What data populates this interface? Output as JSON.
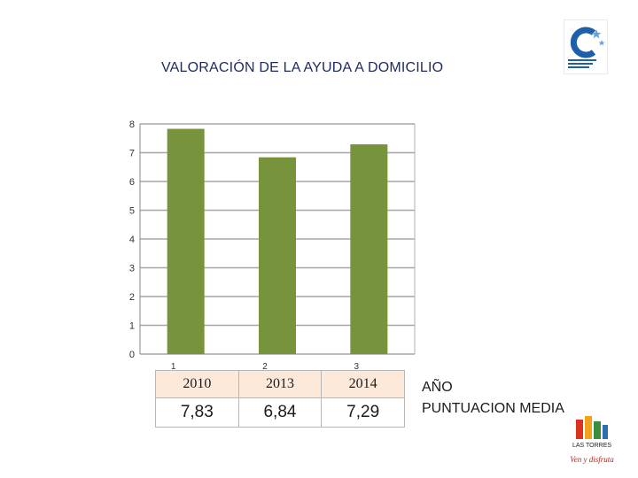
{
  "chart_data": {
    "type": "bar",
    "title": "VALORACIÓN DE LA AYUDA A DOMICILIO",
    "categories": [
      "1",
      "2",
      "3"
    ],
    "values": [
      7.83,
      6.84,
      7.29
    ],
    "ylim": [
      0,
      8
    ],
    "yticks": [
      "0",
      "1",
      "2",
      "3",
      "4",
      "5",
      "6",
      "7",
      "8"
    ],
    "grid": true,
    "bar_color": "#77933c"
  },
  "table": {
    "years": [
      "2010",
      "2013",
      "2014"
    ],
    "scores": [
      "7,83",
      "6,84",
      "7,29"
    ],
    "row_labels": [
      "AÑO",
      "PUNTUACION MEDIA"
    ]
  },
  "logos": {
    "top_right": "ayuntamiento-logo",
    "bottom_right_name": "LAS TORRES",
    "bottom_right_slogan": "Ven y disfruta"
  }
}
